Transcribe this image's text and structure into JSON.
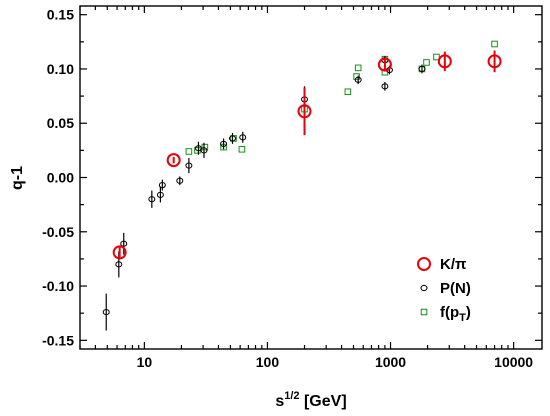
{
  "chart_data": {
    "type": "scatter",
    "xlabel": "s",
    "xlabel_sup": "1/2",
    "xlabel_unit": " [GeV]",
    "ylabel": "q-1",
    "xscale": "log",
    "xlim": [
      3,
      17000
    ],
    "ylim": [
      -0.158,
      0.158
    ],
    "x_ticks": [
      10,
      100,
      1000,
      10000
    ],
    "x_tick_labels": [
      "10",
      "100",
      "1000",
      "10000"
    ],
    "y_ticks": [
      -0.15,
      -0.1,
      -0.05,
      0.0,
      0.05,
      0.1,
      0.15
    ],
    "y_tick_labels": [
      "-0.15",
      "-0.10",
      "-0.05",
      "0.00",
      "0.05",
      "0.10",
      "0.15"
    ],
    "grid": false,
    "legend_position": "bottom-right",
    "series": [
      {
        "name": "K/π",
        "marker": "circle-large",
        "color": "#e8000b",
        "points": [
          {
            "x": 6.3,
            "y": -0.069,
            "err": 0.006
          },
          {
            "x": 17.3,
            "y": 0.016,
            "err": 0.003
          },
          {
            "x": 200,
            "y": 0.061,
            "err": 0.022
          },
          {
            "x": 900,
            "y": 0.104,
            "err": 0.006
          },
          {
            "x": 2760,
            "y": 0.107,
            "err": 0.009
          },
          {
            "x": 7000,
            "y": 0.107,
            "err": 0.01
          }
        ]
      },
      {
        "name": "P(N)",
        "marker": "circle-small",
        "color": "#000000",
        "points": [
          {
            "x": 4.9,
            "y": -0.124,
            "err": 0.017
          },
          {
            "x": 6.2,
            "y": -0.08,
            "err": 0.012
          },
          {
            "x": 6.8,
            "y": -0.061,
            "err": 0.01
          },
          {
            "x": 11.5,
            "y": -0.02,
            "err": 0.008
          },
          {
            "x": 13.5,
            "y": -0.016,
            "err": 0.007
          },
          {
            "x": 14.0,
            "y": -0.007,
            "err": 0.005
          },
          {
            "x": 19.4,
            "y": -0.003,
            "err": 0.004
          },
          {
            "x": 23.0,
            "y": 0.011,
            "err": 0.007
          },
          {
            "x": 27.5,
            "y": 0.027,
            "err": 0.006
          },
          {
            "x": 30.5,
            "y": 0.025,
            "err": 0.007
          },
          {
            "x": 44.0,
            "y": 0.031,
            "err": 0.005
          },
          {
            "x": 52.0,
            "y": 0.036,
            "err": 0.005
          },
          {
            "x": 63.0,
            "y": 0.037,
            "err": 0.005
          },
          {
            "x": 200,
            "y": 0.072,
            "err": 0.012
          },
          {
            "x": 546,
            "y": 0.09,
            "err": 0.004
          },
          {
            "x": 900,
            "y": 0.084,
            "err": 0.004
          },
          {
            "x": 900,
            "y": 0.108,
            "err": 0.004
          },
          {
            "x": 980,
            "y": 0.099,
            "err": 0.004
          },
          {
            "x": 1800,
            "y": 0.1,
            "err": 0.004
          }
        ]
      },
      {
        "name": "f(pT)",
        "marker": "square",
        "color": "#1a8f1a",
        "points": [
          {
            "x": 23.0,
            "y": 0.024
          },
          {
            "x": 27.0,
            "y": 0.025
          },
          {
            "x": 31.0,
            "y": 0.028
          },
          {
            "x": 44.0,
            "y": 0.028
          },
          {
            "x": 53.0,
            "y": 0.036
          },
          {
            "x": 62.0,
            "y": 0.026
          },
          {
            "x": 200,
            "y": 0.063
          },
          {
            "x": 450,
            "y": 0.079
          },
          {
            "x": 530,
            "y": 0.093
          },
          {
            "x": 546,
            "y": 0.101
          },
          {
            "x": 900,
            "y": 0.097
          },
          {
            "x": 900,
            "y": 0.109
          },
          {
            "x": 1800,
            "y": 0.1
          },
          {
            "x": 1960,
            "y": 0.106
          },
          {
            "x": 2360,
            "y": 0.111
          },
          {
            "x": 7000,
            "y": 0.123
          }
        ]
      }
    ],
    "legend": [
      {
        "label": "K/π"
      },
      {
        "label": "P(N)"
      },
      {
        "label": "f(p",
        "sub": "T",
        "suffix": ")"
      }
    ]
  }
}
